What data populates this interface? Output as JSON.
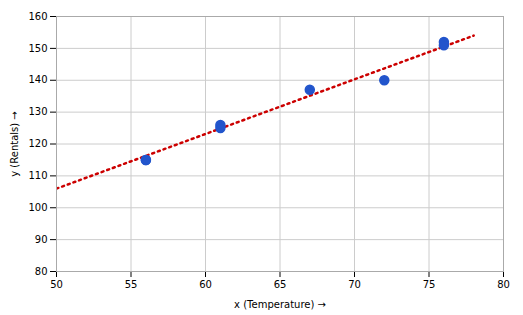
{
  "chart_data": {
    "type": "scatter",
    "xlabel": "x (Temperature)",
    "ylabel": "y (Rentals)",
    "series": [
      {
        "type": "line",
        "x": [
          50,
          78
        ],
        "values": [
          106,
          154
        ],
        "color": "#cc0000",
        "line_style": "dotted"
      },
      {
        "type": "scatter",
        "x": [
          56,
          56,
          61,
          61,
          67,
          72,
          76,
          76
        ],
        "values": [
          115,
          115,
          126,
          125,
          137,
          140,
          152,
          151
        ],
        "color": "#2255cc"
      }
    ],
    "xlim": [
      50,
      80
    ],
    "ylim": [
      80,
      160
    ],
    "xticks": [
      50,
      55,
      60,
      65,
      70,
      75,
      80
    ],
    "yticks": [
      80,
      90,
      100,
      110,
      120,
      130,
      140,
      150,
      160
    ],
    "grid": true
  }
}
